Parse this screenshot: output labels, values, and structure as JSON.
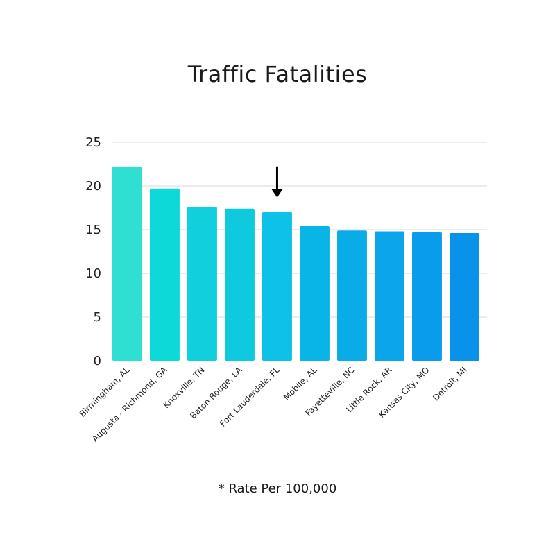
{
  "chart_data": {
    "type": "bar",
    "title": "Traffic Fatalities",
    "footnote": "* Rate Per 100,000",
    "categories": [
      "Birmingham, AL",
      "Augusta - Richmond, GA",
      "Knoxville, TN",
      "Baton Rouge, LA",
      "Fort Lauderdale, FL",
      "Mobile, AL",
      "Fayetteville, NC",
      "Little Rock, AR",
      "Kansas City, MO",
      "Detroit, MI"
    ],
    "values": [
      22.2,
      19.7,
      17.6,
      17.4,
      17.0,
      15.4,
      14.9,
      14.8,
      14.7,
      14.6
    ],
    "colors": [
      "#2fe0d2",
      "#0cdad8",
      "#11cfdc",
      "#0fc9df",
      "#0ec1e6",
      "#09b4e6",
      "#0aabe9",
      "#0aa5ea",
      "#099ced",
      "#0892ea"
    ],
    "ylim": [
      0,
      25
    ],
    "yticks": [
      0,
      5,
      10,
      15,
      20,
      25
    ],
    "grid": true,
    "legend": "none",
    "annotation": {
      "type": "arrow",
      "category": "Fort Lauderdale, FL",
      "color": "#000000"
    },
    "xlabel": "",
    "ylabel": ""
  }
}
